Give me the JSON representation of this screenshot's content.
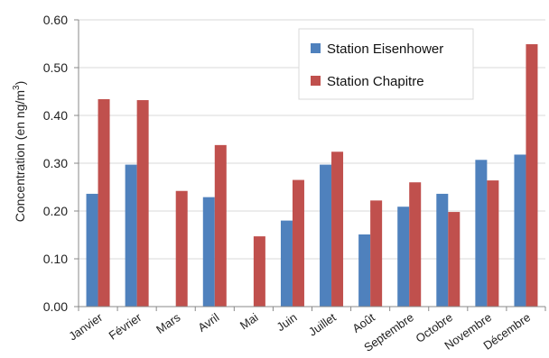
{
  "chart_data": {
    "type": "bar",
    "ylabel": "Concentration (en ng/m³)",
    "ylabel_prefix": "Concentration (en ng/m",
    "ylabel_sup": "3",
    "ylabel_suffix": ")",
    "ylim": [
      0,
      0.6
    ],
    "ytick_step": 0.1,
    "ytick_labels": [
      "0.00",
      "0.10",
      "0.20",
      "0.30",
      "0.40",
      "0.50",
      "0.60"
    ],
    "grid": true,
    "legend_position": "top-right",
    "categories": [
      "Janvier",
      "Février",
      "Mars",
      "Avril",
      "Mai",
      "Juin",
      "Juillet",
      "Août",
      "Septembre",
      "Octobre",
      "Novembre",
      "Décembre"
    ],
    "series": [
      {
        "name": "Station Eisenhower",
        "color": "#4F81BD",
        "values": [
          0.236,
          0.297,
          null,
          0.229,
          null,
          0.18,
          0.297,
          0.151,
          0.209,
          0.236,
          0.307,
          0.318
        ]
      },
      {
        "name": "Station Chapitre",
        "color": "#C0504D",
        "values": [
          0.434,
          0.432,
          0.242,
          0.338,
          0.147,
          0.265,
          0.324,
          0.222,
          0.26,
          0.198,
          0.264,
          0.549
        ]
      }
    ]
  }
}
